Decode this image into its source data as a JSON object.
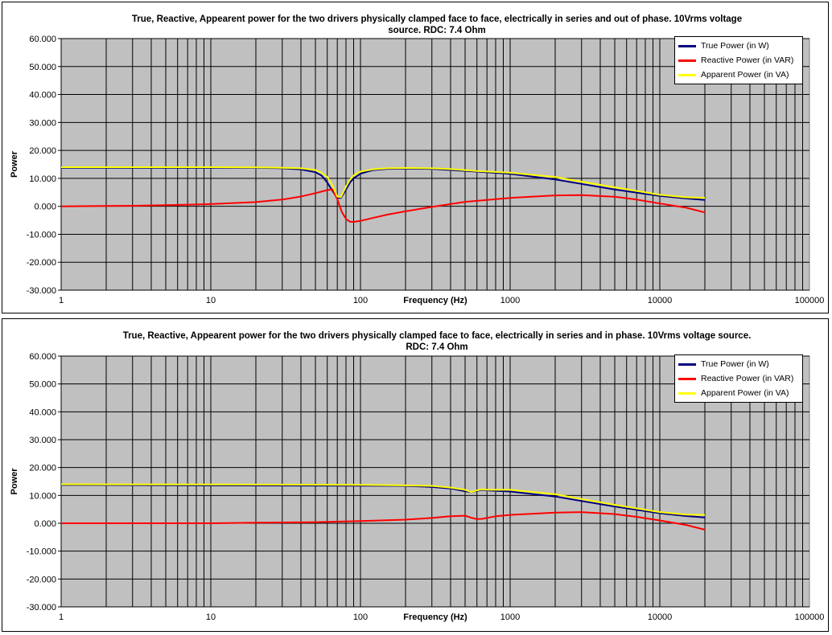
{
  "chart_data": [
    {
      "type": "line",
      "title": "True, Reactive, Appearent power for the two drivers physically clamped face to face, electrically in series and out of phase. 10Vrms voltage source. RDC: 7.4 Ohm",
      "title_lines": [
        "True, Reactive, Appearent power for the two drivers physically clamped face to face, electrically in series and out of phase. 10Vrms voltage",
        "source. RDC: 7.4 Ohm"
      ],
      "xlabel": "Frequency (Hz)",
      "ylabel": "Power",
      "xscale": "log",
      "xlim": [
        1,
        100000
      ],
      "ylim": [
        -30,
        60
      ],
      "x_ticks": [
        1,
        10,
        100,
        1000,
        10000,
        100000
      ],
      "x_tick_labels": [
        "1",
        "10",
        "100",
        "1000",
        "10000",
        "100000"
      ],
      "y_ticks": [
        -30,
        -20,
        -10,
        0,
        10,
        20,
        30,
        40,
        50,
        60
      ],
      "y_tick_labels": [
        "-30.000",
        "-20.000",
        "-10.000",
        "0.000",
        "10.000",
        "20.000",
        "30.000",
        "40.000",
        "50.000",
        "60.000"
      ],
      "grid": true,
      "legend_position": "top-right",
      "series": [
        {
          "name": "True Power (in W)",
          "color": "#000080",
          "points": [
            [
              1,
              13.8
            ],
            [
              10,
              13.8
            ],
            [
              20,
              13.8
            ],
            [
              30,
              13.6
            ],
            [
              40,
              13.2
            ],
            [
              50,
              12.2
            ],
            [
              55,
              11
            ],
            [
              60,
              8.5
            ],
            [
              65,
              5.5
            ],
            [
              70,
              3
            ],
            [
              74,
              3
            ],
            [
              80,
              6
            ],
            [
              85,
              8.5
            ],
            [
              90,
              10
            ],
            [
              100,
              11.7
            ],
            [
              120,
              12.9
            ],
            [
              150,
              13.4
            ],
            [
              200,
              13.5
            ],
            [
              300,
              13.4
            ],
            [
              400,
              13
            ],
            [
              600,
              12.4
            ],
            [
              1000,
              11.6
            ],
            [
              2000,
              9.6
            ],
            [
              3000,
              8
            ],
            [
              5000,
              6
            ],
            [
              10000,
              3.7
            ],
            [
              15000,
              2.8
            ],
            [
              20000,
              2.3
            ]
          ]
        },
        {
          "name": "Reactive Power (in VAR)",
          "color": "#ff0000",
          "points": [
            [
              1,
              0
            ],
            [
              3,
              0.2
            ],
            [
              5,
              0.4
            ],
            [
              10,
              0.8
            ],
            [
              20,
              1.5
            ],
            [
              30,
              2.4
            ],
            [
              40,
              3.5
            ],
            [
              50,
              4.7
            ],
            [
              60,
              5.8
            ],
            [
              65,
              6.1
            ],
            [
              70,
              2.5
            ],
            [
              75,
              -2
            ],
            [
              80,
              -4.5
            ],
            [
              85,
              -5.5
            ],
            [
              90,
              -5.6
            ],
            [
              100,
              -5.2
            ],
            [
              120,
              -4.2
            ],
            [
              150,
              -3
            ],
            [
              200,
              -1.8
            ],
            [
              300,
              -0.2
            ],
            [
              500,
              1.6
            ],
            [
              1000,
              3
            ],
            [
              2000,
              3.9
            ],
            [
              3000,
              4
            ],
            [
              5000,
              3.4
            ],
            [
              7000,
              2.4
            ],
            [
              10000,
              1
            ],
            [
              15000,
              -0.5
            ],
            [
              20000,
              -2.2
            ]
          ]
        },
        {
          "name": "Apparent Power (in VA)",
          "color": "#ffff00",
          "points": [
            [
              1,
              14
            ],
            [
              10,
              14
            ],
            [
              20,
              13.9
            ],
            [
              30,
              13.8
            ],
            [
              40,
              13.6
            ],
            [
              50,
              13
            ],
            [
              55,
              12
            ],
            [
              60,
              10.5
            ],
            [
              65,
              7.5
            ],
            [
              70,
              3.5
            ],
            [
              74,
              3.3
            ],
            [
              80,
              7
            ],
            [
              85,
              9.5
            ],
            [
              90,
              11
            ],
            [
              100,
              12.4
            ],
            [
              120,
              13.2
            ],
            [
              150,
              13.6
            ],
            [
              200,
              13.7
            ],
            [
              300,
              13.6
            ],
            [
              400,
              13.3
            ],
            [
              600,
              12.6
            ],
            [
              1000,
              12
            ],
            [
              2000,
              10.5
            ],
            [
              3000,
              8.8
            ],
            [
              5000,
              6.8
            ],
            [
              10000,
              4.1
            ],
            [
              15000,
              3.2
            ],
            [
              20000,
              3
            ]
          ]
        }
      ]
    },
    {
      "type": "line",
      "title": "True, Reactive, Appearent power for the two drivers physically clamped face to face, electrically in series and in phase. 10Vrms voltage source. RDC: 7.4 Ohm",
      "title_lines": [
        "True, Reactive, Appearent power for the two drivers physically clamped face to face, electrically in series and in phase. 10Vrms voltage source.",
        "RDC: 7.4 Ohm"
      ],
      "xlabel": "Frequency (Hz)",
      "ylabel": "Power",
      "xscale": "log",
      "xlim": [
        1,
        100000
      ],
      "ylim": [
        -30,
        60
      ],
      "x_ticks": [
        1,
        10,
        100,
        1000,
        10000,
        100000
      ],
      "x_tick_labels": [
        "1",
        "10",
        "100",
        "1000",
        "10000",
        "100000"
      ],
      "y_ticks": [
        -30,
        -20,
        -10,
        0,
        10,
        20,
        30,
        40,
        50,
        60
      ],
      "y_tick_labels": [
        "-30.000",
        "-20.000",
        "-10.000",
        "0.000",
        "10.000",
        "20.000",
        "30.000",
        "40.000",
        "50.000",
        "60.000"
      ],
      "grid": true,
      "legend_position": "top-right",
      "series": [
        {
          "name": "True Power (in W)",
          "color": "#000080",
          "points": [
            [
              1,
              13.8
            ],
            [
              10,
              13.6
            ],
            [
              100,
              13.5
            ],
            [
              200,
              13.4
            ],
            [
              300,
              13
            ],
            [
              400,
              12.5
            ],
            [
              500,
              11.5
            ],
            [
              550,
              11.2
            ],
            [
              600,
              11.6
            ],
            [
              650,
              12
            ],
            [
              700,
              11.8
            ],
            [
              1000,
              11.4
            ],
            [
              2000,
              9.6
            ],
            [
              3000,
              8
            ],
            [
              5000,
              6
            ],
            [
              10000,
              3.6
            ],
            [
              15000,
              2.6
            ],
            [
              20000,
              2.1
            ]
          ]
        },
        {
          "name": "Reactive Power (in VAR)",
          "color": "#ff0000",
          "points": [
            [
              1,
              0
            ],
            [
              10,
              0
            ],
            [
              20,
              0.2
            ],
            [
              50,
              0.4
            ],
            [
              100,
              0.8
            ],
            [
              200,
              1.3
            ],
            [
              300,
              1.9
            ],
            [
              400,
              2.5
            ],
            [
              500,
              2.7
            ],
            [
              550,
              2
            ],
            [
              600,
              1.5
            ],
            [
              650,
              1.6
            ],
            [
              700,
              1.9
            ],
            [
              800,
              2.5
            ],
            [
              1000,
              3
            ],
            [
              2000,
              3.8
            ],
            [
              3000,
              4
            ],
            [
              5000,
              3.3
            ],
            [
              7000,
              2.3
            ],
            [
              10000,
              1
            ],
            [
              15000,
              -0.6
            ],
            [
              20000,
              -2.3
            ]
          ]
        },
        {
          "name": "Apparent Power (in VA)",
          "color": "#ffff00",
          "points": [
            [
              1,
              14
            ],
            [
              10,
              13.9
            ],
            [
              100,
              13.8
            ],
            [
              200,
              13.6
            ],
            [
              300,
              13.4
            ],
            [
              400,
              12.8
            ],
            [
              500,
              12
            ],
            [
              550,
              11.2
            ],
            [
              600,
              11.8
            ],
            [
              650,
              12.2
            ],
            [
              700,
              12
            ],
            [
              1000,
              12
            ],
            [
              2000,
              10.4
            ],
            [
              3000,
              8.7
            ],
            [
              5000,
              6.6
            ],
            [
              10000,
              4
            ],
            [
              15000,
              3.1
            ],
            [
              20000,
              3
            ]
          ]
        }
      ]
    }
  ]
}
